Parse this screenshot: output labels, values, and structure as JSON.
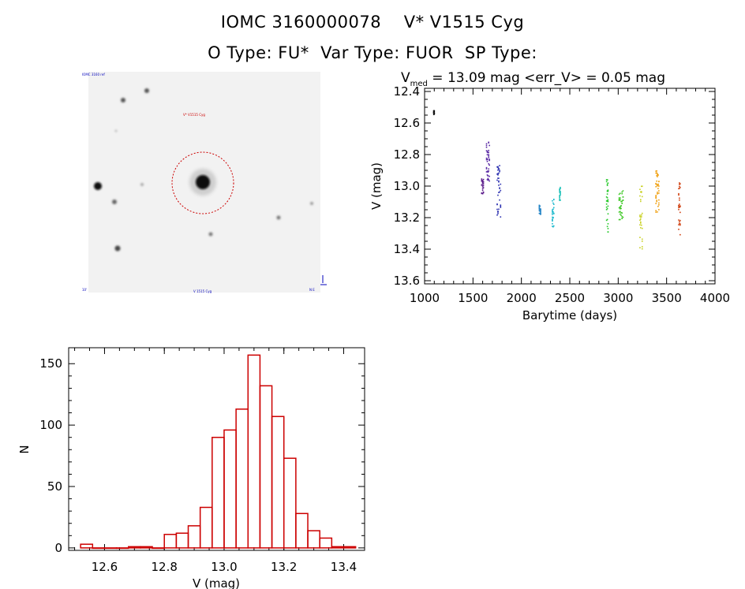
{
  "title": {
    "line1": "IOMC 3160000078    V* V1515 Cyg",
    "line2": "O Type: FU*  Var Type: FUOR  SP Type:"
  },
  "image_panel": {
    "labels": {
      "top_left": "IOMC 3160 ref",
      "red_label": "V* V1515 Cyg",
      "bottom_center": "V 1515 Cyg",
      "bottom_left": "10'",
      "bottom_right": "N E"
    }
  },
  "light_curve": {
    "subtitle_prefix": "V",
    "subtitle_sub": "med",
    "subtitle_rest": " = 13.09 mag <err_V> = 0.05 mag"
  },
  "chart_data": [
    {
      "type": "scatter",
      "title": "Vmed = 13.09 mag <err_V> = 0.05 mag",
      "xlabel": "Barytime (days)",
      "ylabel": "V (mag)",
      "xlim": [
        1000,
        4000
      ],
      "ylim": [
        13.62,
        12.38
      ],
      "xticks": [
        "1000",
        "1500",
        "2000",
        "2500",
        "3000",
        "3500",
        "4000"
      ],
      "yticks": [
        "12.4",
        "12.6",
        "12.8",
        "13.0",
        "13.2",
        "13.4",
        "13.6"
      ],
      "groups": [
        {
          "x": [
            1095,
            1100
          ],
          "y_range": [
            12.52,
            12.55
          ],
          "color": "#111111"
        },
        {
          "x": [
            1590,
            1600,
            1608
          ],
          "y_range": [
            12.95,
            13.05
          ],
          "color": "#5a1a8a"
        },
        {
          "x": [
            1640,
            1648,
            1655,
            1662,
            1670
          ],
          "y_range": [
            12.72,
            12.97
          ],
          "color": "#5a2aa5"
        },
        {
          "x": [
            1750,
            1758,
            1766,
            1775,
            1785
          ],
          "y_range": [
            12.87,
            13.22
          ],
          "color": "#2a2fb0"
        },
        {
          "x": [
            2185,
            2192,
            2198
          ],
          "y_range": [
            13.12,
            13.18
          ],
          "color": "#2a88c8"
        },
        {
          "x": [
            2320,
            2328,
            2335
          ],
          "y_range": [
            13.08,
            13.26
          ],
          "color": "#1ab8cc"
        },
        {
          "x": [
            2395,
            2402
          ],
          "y_range": [
            13.0,
            13.1
          ],
          "color": "#1ac0b8"
        },
        {
          "x": [
            2880,
            2888,
            2895
          ],
          "y_range": [
            12.95,
            13.31
          ],
          "color": "#26c82a"
        },
        {
          "x": [
            3010,
            3020,
            3030,
            3040,
            3050
          ],
          "y_range": [
            13.02,
            13.22
          ],
          "color": "#3ec825"
        },
        {
          "x": [
            3225,
            3232,
            3240,
            3248
          ],
          "y_range": [
            13.0,
            13.4
          ],
          "color": "#c8d020"
        },
        {
          "x": [
            3390,
            3398,
            3405,
            3412,
            3420
          ],
          "y_range": [
            12.9,
            13.18
          ],
          "color": "#f0a010"
        },
        {
          "x": [
            3625,
            3632,
            3640
          ],
          "y_range": [
            12.98,
            13.32
          ],
          "color": "#d04010"
        }
      ]
    },
    {
      "type": "bar",
      "xlabel": "V (mag)",
      "ylabel": "N",
      "xlim": [
        12.48,
        13.47
      ],
      "ylim": [
        -2,
        163
      ],
      "xticks": [
        "12.6",
        "12.8",
        "13.0",
        "13.2",
        "13.4"
      ],
      "yticks": [
        "0",
        "50",
        "100",
        "150"
      ],
      "bin_width": 0.04,
      "bin_starts": [
        12.52,
        12.56,
        12.6,
        12.64,
        12.68,
        12.72,
        12.76,
        12.8,
        12.84,
        12.88,
        12.92,
        12.96,
        13.0,
        13.04,
        13.08,
        13.12,
        13.16,
        13.2,
        13.24,
        13.28,
        13.32,
        13.36,
        13.4
      ],
      "values": [
        3,
        0,
        0,
        0,
        1,
        1,
        0,
        11,
        12,
        18,
        33,
        90,
        96,
        113,
        157,
        132,
        107,
        73,
        28,
        14,
        8,
        1,
        1
      ],
      "color": "#cc0000"
    }
  ]
}
